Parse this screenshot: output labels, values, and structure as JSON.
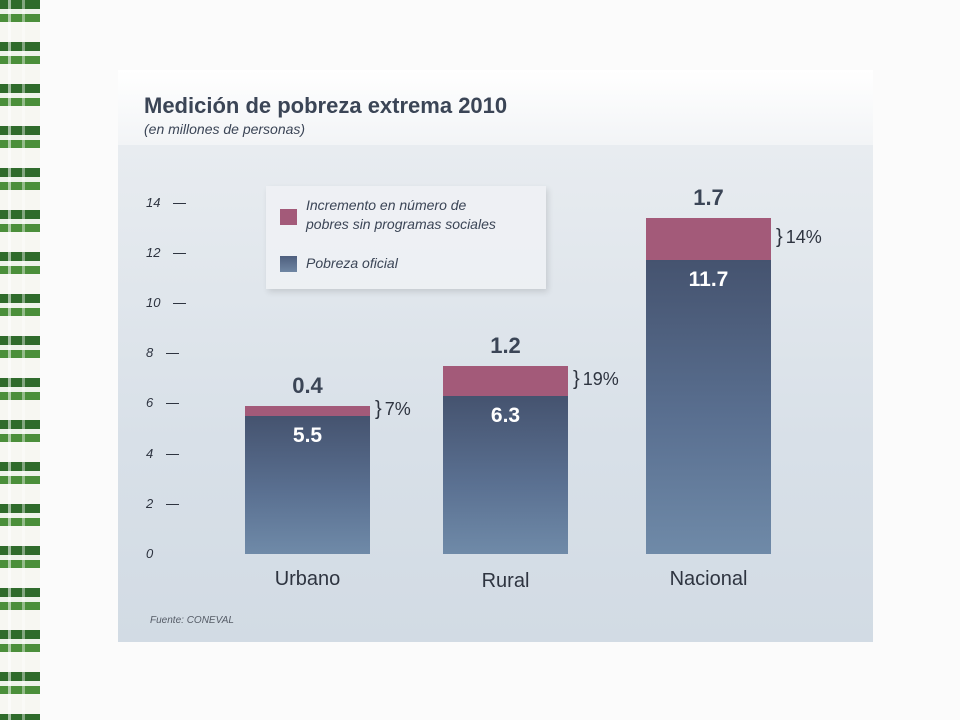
{
  "chart_data": {
    "type": "bar",
    "title": "Medición de pobreza extrema 2010",
    "subtitle": "(en millones de personas)",
    "categories": [
      "Urbano",
      "Rural",
      "Nacional"
    ],
    "series": [
      {
        "name": "Pobreza oficial",
        "values": [
          5.5,
          6.3,
          11.7
        ],
        "color": "#5a7091"
      },
      {
        "name": "Incremento en número de pobres sin programas sociales",
        "values": [
          0.4,
          1.2,
          1.7
        ],
        "color": "#a35a79"
      }
    ],
    "stacked": true,
    "percent_labels": [
      "7%",
      "19%",
      "14%"
    ],
    "y_ticks": [
      "14",
      "12",
      "10",
      "8",
      "6",
      "4",
      "2",
      "0"
    ],
    "ylim": [
      0,
      14
    ],
    "legend_position": "top-left",
    "source": "Fuente: CONEVAL"
  },
  "legend": {
    "increment_line1": "Incremento en número de",
    "increment_line2": "pobres sin programas sociales",
    "official": "Pobreza oficial"
  }
}
